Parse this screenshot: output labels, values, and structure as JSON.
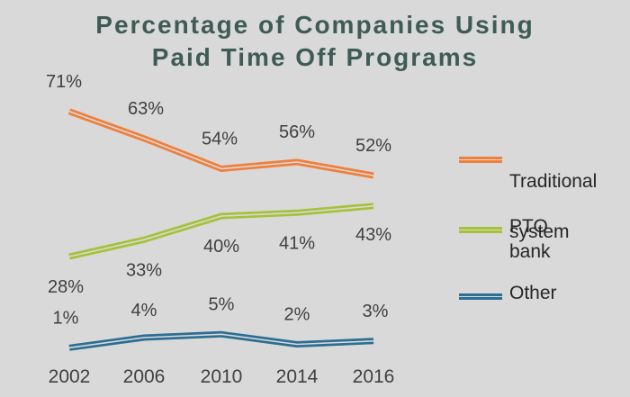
{
  "chart_data": {
    "type": "line",
    "title": "Percentage of Companies Using Paid Time Off Programs",
    "title_lines": [
      "Percentage of Companies Using",
      "Paid Time Off Programs"
    ],
    "categories": [
      "2002",
      "2006",
      "2010",
      "2014",
      "2016"
    ],
    "series": [
      {
        "name": "Traditional system",
        "label_lines": [
          "Traditional",
          "system"
        ],
        "values": [
          71,
          63,
          54,
          56,
          52
        ],
        "labels": [
          "71%",
          "63%",
          "54%",
          "56%",
          "52%"
        ],
        "color": "#f07f3c"
      },
      {
        "name": "PTO bank",
        "label_lines": [
          "PTO bank"
        ],
        "values": [
          28,
          33,
          40,
          41,
          43
        ],
        "labels": [
          "28%",
          "33%",
          "40%",
          "41%",
          "43%"
        ],
        "color": "#a6c13a"
      },
      {
        "name": "Other",
        "label_lines": [
          "Other"
        ],
        "values": [
          1,
          4,
          5,
          2,
          3
        ],
        "labels": [
          "1%",
          "4%",
          "5%",
          "2%",
          "3%"
        ],
        "color": "#2c6e93"
      }
    ],
    "ylim": [
      0,
      80
    ],
    "grid": false,
    "legend_position": "right"
  }
}
